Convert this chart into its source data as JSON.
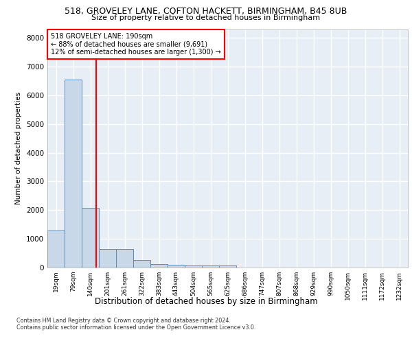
{
  "title1": "518, GROVELEY LANE, COFTON HACKETT, BIRMINGHAM, B45 8UB",
  "title2": "Size of property relative to detached houses in Birmingham",
  "xlabel": "Distribution of detached houses by size in Birmingham",
  "ylabel": "Number of detached properties",
  "categories": [
    "19sqm",
    "79sqm",
    "140sqm",
    "201sqm",
    "261sqm",
    "322sqm",
    "383sqm",
    "443sqm",
    "504sqm",
    "565sqm",
    "625sqm",
    "686sqm",
    "747sqm",
    "807sqm",
    "868sqm",
    "929sqm",
    "990sqm",
    "1050sqm",
    "1111sqm",
    "1172sqm",
    "1232sqm"
  ],
  "values": [
    1300,
    6550,
    2070,
    650,
    640,
    260,
    130,
    90,
    60,
    60,
    60,
    0,
    0,
    0,
    0,
    0,
    0,
    0,
    0,
    0,
    0
  ],
  "bar_color": "#c8d8e8",
  "bar_edge_color": "#5b8db8",
  "red_line_x": 2.33,
  "annotation_line1": "518 GROVELEY LANE: 190sqm",
  "annotation_line2": "← 88% of detached houses are smaller (9,691)",
  "annotation_line3": "12% of semi-detached houses are larger (1,300) →",
  "ylim": [
    0,
    8300
  ],
  "yticks": [
    0,
    1000,
    2000,
    3000,
    4000,
    5000,
    6000,
    7000,
    8000
  ],
  "footnote1": "Contains HM Land Registry data © Crown copyright and database right 2024.",
  "footnote2": "Contains public sector information licensed under the Open Government Licence v3.0.",
  "bg_color": "#ffffff",
  "plot_bg_color": "#e8eef5",
  "grid_color": "#ffffff"
}
